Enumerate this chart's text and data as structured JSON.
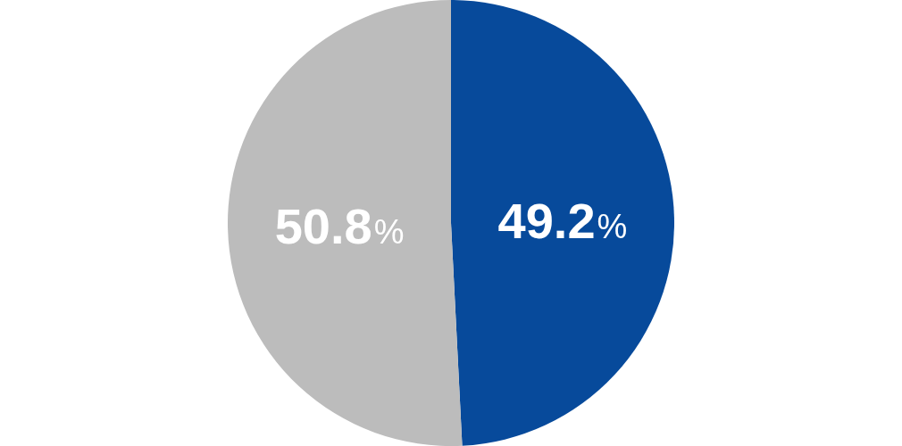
{
  "chart_data": {
    "type": "pie",
    "categories": [
      null,
      null
    ],
    "values": [
      49.2,
      50.8
    ],
    "colors": [
      "#074a9b",
      "#bcbcbc"
    ],
    "value_labels": [
      "49.2%",
      "50.8%"
    ]
  }
}
